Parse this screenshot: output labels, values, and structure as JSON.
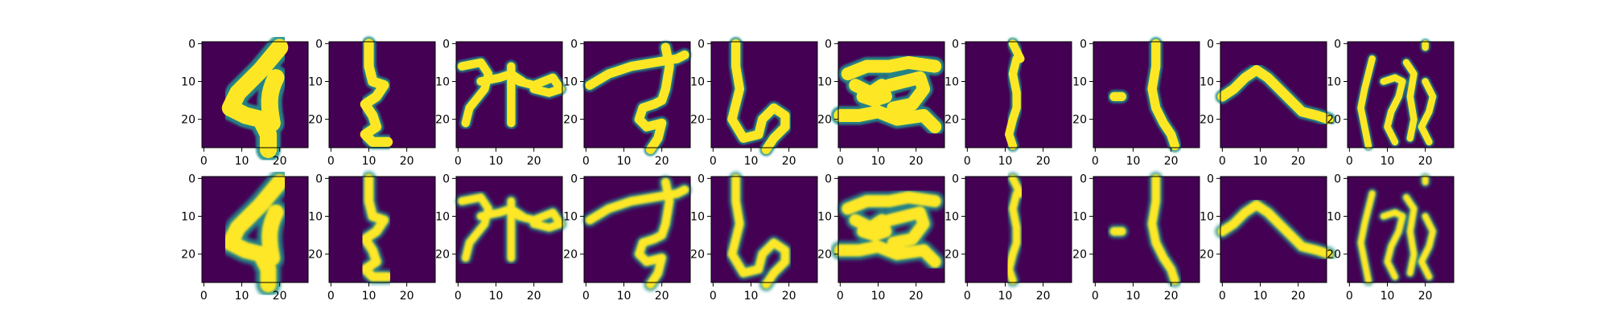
{
  "figure": {
    "background": "#ffffff",
    "colormap": {
      "name": "viridis",
      "low": "#440154",
      "mid": "#21918c",
      "high": "#fde725"
    }
  },
  "chart_data": {
    "type": "heatmap",
    "layout": {
      "rows": 2,
      "cols": 10
    },
    "row_roles": [
      "original",
      "reconstruction"
    ],
    "image_size": [
      28,
      28
    ],
    "xlim": [
      0,
      27
    ],
    "ylim": [
      27,
      0
    ],
    "xticks": [
      0,
      10,
      20
    ],
    "yticks": [
      0,
      10,
      20
    ],
    "xtick_labels": [
      "0",
      "10",
      "20"
    ],
    "ytick_labels": [
      "0",
      "10",
      "20"
    ],
    "grid": false,
    "legend": "none",
    "glyphs": [
      "ki-like",
      "ko-like",
      "ya-like",
      "su-like",
      "shi-like",
      "ho-like",
      "ri-like",
      "i-like",
      "he-like",
      "ne-like"
    ]
  }
}
